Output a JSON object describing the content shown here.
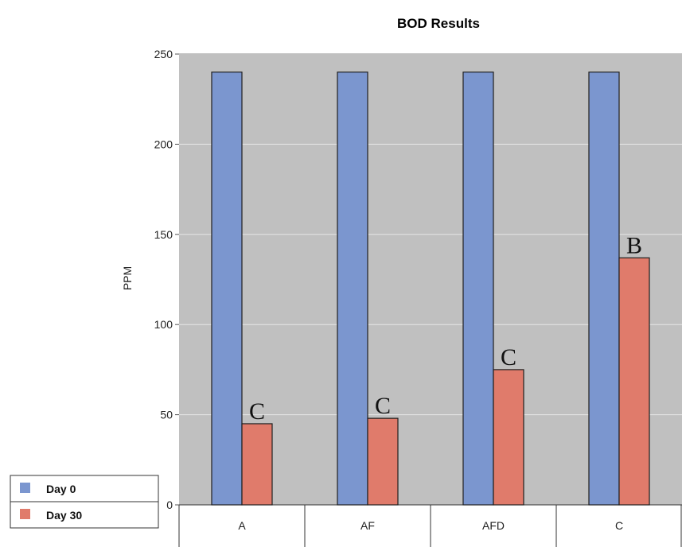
{
  "chart_data": {
    "type": "bar",
    "title": "BOD Results",
    "xlabel": "",
    "ylabel": "PPM",
    "ylim": [
      0,
      250
    ],
    "yticks": [
      0,
      50,
      100,
      150,
      200,
      250
    ],
    "grid": true,
    "legend_position": "bottom-left",
    "categories": [
      "A",
      "AF",
      "AFD",
      "C"
    ],
    "series": [
      {
        "name": "Day 0",
        "color": "#7b96cf",
        "values": [
          240,
          240,
          240,
          240
        ]
      },
      {
        "name": "Day 30",
        "color": "#e07b6b",
        "values": [
          45,
          48,
          75,
          137
        ]
      }
    ],
    "annotations": [
      {
        "category": "A",
        "series": "Day 30",
        "text": "C"
      },
      {
        "category": "AF",
        "series": "Day 30",
        "text": "C"
      },
      {
        "category": "AFD",
        "series": "Day 30",
        "text": "C"
      },
      {
        "category": "C",
        "series": "Day 30",
        "text": "B"
      }
    ],
    "plot_background": "#c0c0c0",
    "gridline_color": "#e6e6e6"
  }
}
